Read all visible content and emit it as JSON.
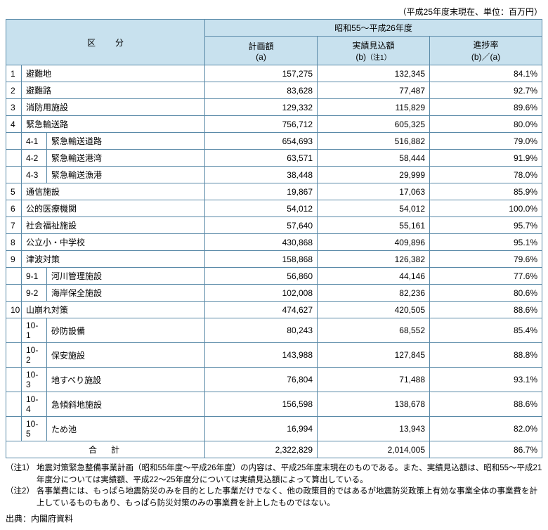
{
  "caption": "（平成25年度末現在、単位：百万円）",
  "header": {
    "category_label": "区分",
    "period_label": "昭和55～平成26年度",
    "col_plan_l1": "計画額",
    "col_plan_l2": "(a)",
    "col_actual_l1": "実績見込額",
    "col_actual_l2": "(b)",
    "col_actual_note": "（注1）",
    "col_rate_l1": "進捗率",
    "col_rate_l2": "(b)／(a)"
  },
  "rows": [
    {
      "idx": "1",
      "label": "避難地",
      "plan": "157,275",
      "actual": "132,345",
      "rate": "84.1%"
    },
    {
      "idx": "2",
      "label": "避難路",
      "plan": "83,628",
      "actual": "77,487",
      "rate": "92.7%"
    },
    {
      "idx": "3",
      "label": "消防用施設",
      "plan": "129,332",
      "actual": "115,829",
      "rate": "89.6%"
    },
    {
      "idx": "4",
      "label": "緊急輸送路",
      "plan": "756,712",
      "actual": "605,325",
      "rate": "80.0%"
    },
    {
      "sub": "4-1",
      "label": "緊急輸送道路",
      "plan": "654,693",
      "actual": "516,882",
      "rate": "79.0%"
    },
    {
      "sub": "4-2",
      "label": "緊急輸送港湾",
      "plan": "63,571",
      "actual": "58,444",
      "rate": "91.9%"
    },
    {
      "sub": "4-3",
      "label": "緊急輸送漁港",
      "plan": "38,448",
      "actual": "29,999",
      "rate": "78.0%"
    },
    {
      "idx": "5",
      "label": "通信施設",
      "plan": "19,867",
      "actual": "17,063",
      "rate": "85.9%"
    },
    {
      "idx": "6",
      "label": "公的医療機関",
      "plan": "54,012",
      "actual": "54,012",
      "rate": "100.0%"
    },
    {
      "idx": "7",
      "label": "社会福祉施設",
      "plan": "57,640",
      "actual": "55,161",
      "rate": "95.7%"
    },
    {
      "idx": "8",
      "label": "公立小・中学校",
      "plan": "430,868",
      "actual": "409,896",
      "rate": "95.1%"
    },
    {
      "idx": "9",
      "label": "津波対策",
      "plan": "158,868",
      "actual": "126,382",
      "rate": "79.6%"
    },
    {
      "sub": "9-1",
      "label": "河川管理施設",
      "plan": "56,860",
      "actual": "44,146",
      "rate": "77.6%"
    },
    {
      "sub": "9-2",
      "label": "海岸保全施設",
      "plan": "102,008",
      "actual": "82,236",
      "rate": "80.6%"
    },
    {
      "idx": "10",
      "label": "山崩れ対策",
      "plan": "474,627",
      "actual": "420,505",
      "rate": "88.6%"
    },
    {
      "sub": "10-1",
      "label": "砂防設備",
      "plan": "80,243",
      "actual": "68,552",
      "rate": "85.4%"
    },
    {
      "sub": "10-2",
      "label": "保安施設",
      "plan": "143,988",
      "actual": "127,845",
      "rate": "88.8%"
    },
    {
      "sub": "10-3",
      "label": "地すべり施設",
      "plan": "76,804",
      "actual": "71,488",
      "rate": "93.1%"
    },
    {
      "sub": "10-4",
      "label": "急傾斜地施設",
      "plan": "156,598",
      "actual": "138,678",
      "rate": "88.6%"
    },
    {
      "sub": "10-5",
      "label": "ため池",
      "plan": "16,994",
      "actual": "13,943",
      "rate": "82.0%"
    }
  ],
  "total": {
    "label": "合計",
    "plan": "2,322,829",
    "actual": "2,014,005",
    "rate": "86.7%"
  },
  "notes": {
    "n1_tag": "（注1）",
    "n1_body": "地震対策緊急整備事業計画（昭和55年度～平成26年度）の内容は、平成25年度末現在のものである。また、実績見込額は、昭和55～平成21年度分については実績額、平成22～25年度分については実績見込額によって算出している。",
    "n2_tag": "（注2）",
    "n2_body": "各事業費には、もっぱら地震防災のみを目的とした事業だけでなく、他の政策目的ではあるが地震防災政策上有効な事業全体の事業費を計上しているものもあり、もっぱら防災対策のみの事業費を計上したものではない。"
  },
  "source": "出典：内閣府資料"
}
